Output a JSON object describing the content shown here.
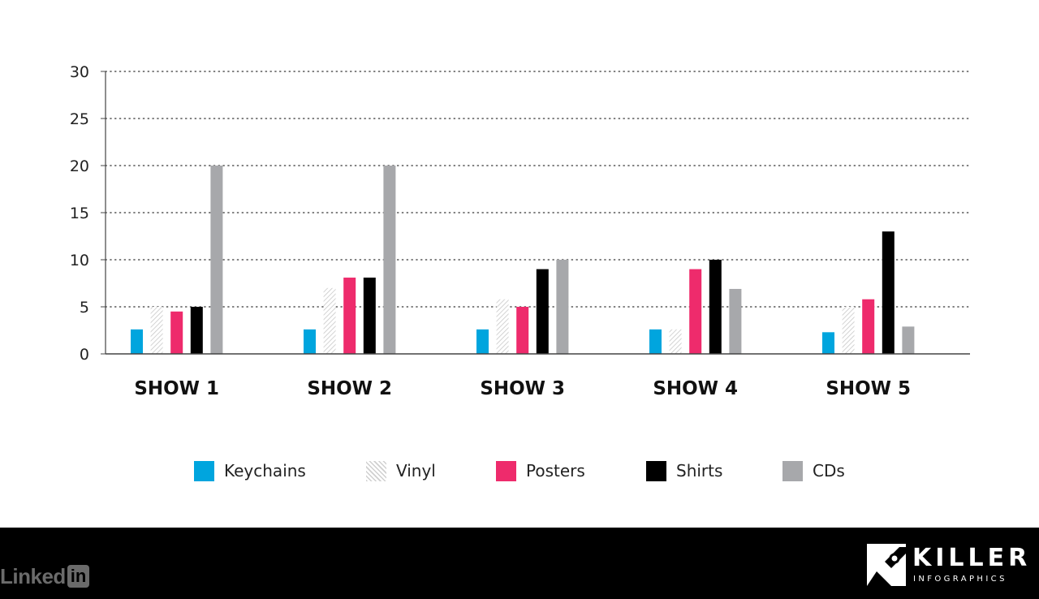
{
  "chart_data": {
    "type": "bar",
    "categories": [
      "SHOW 1",
      "SHOW 2",
      "SHOW 3",
      "SHOW 4",
      "SHOW 5"
    ],
    "series": [
      {
        "name": "Keychains",
        "color": "#00a5de",
        "pattern": "solid",
        "values": [
          2.6,
          2.6,
          2.6,
          2.6,
          2.3
        ]
      },
      {
        "name": "Vinyl",
        "color": "#d9d9d9",
        "pattern": "hatched",
        "values": [
          5,
          7,
          5.8,
          2.6,
          5
        ]
      },
      {
        "name": "Posters",
        "color": "#ee2b6c",
        "pattern": "solid",
        "values": [
          4.5,
          8.1,
          5,
          9,
          5.8
        ]
      },
      {
        "name": "Shirts",
        "color": "#000000",
        "pattern": "solid",
        "values": [
          5,
          8.1,
          9,
          10,
          13
        ]
      },
      {
        "name": "CDs",
        "color": "#a7a8ab",
        "pattern": "solid",
        "values": [
          20,
          20,
          10,
          6.9,
          2.9
        ]
      }
    ],
    "yticks": [
      "0",
      "5",
      "10",
      "15",
      "20",
      "25",
      "30"
    ],
    "ylim": [
      0,
      30
    ],
    "grid": "dotted horizontal",
    "legend_position": "bottom",
    "title": "",
    "xlabel": "",
    "ylabel": ""
  },
  "footer": {
    "linkedin_text": "Linked",
    "linkedin_box": "in",
    "brand_word": "KILLER",
    "brand_sub": "INFOGRAPHICS"
  }
}
